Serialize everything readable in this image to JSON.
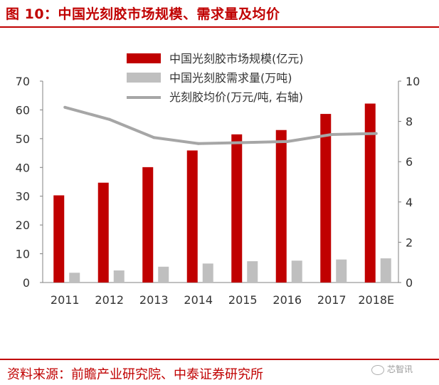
{
  "figure": {
    "title": "图 10：中国光刻胶市场规模、需求量及均价",
    "source": "资料来源：前瞻产业研究院、中泰证券研究所",
    "watermark": "芯智讯"
  },
  "chart_data": {
    "type": "bar",
    "categories": [
      "2011",
      "2012",
      "2013",
      "2014",
      "2015",
      "2016",
      "2017",
      "2018E"
    ],
    "series": [
      {
        "name": "中国光刻胶市场规模(亿元)",
        "type": "bar",
        "axis": "left",
        "color": "#c00000",
        "values": [
          30.3,
          34.7,
          40.1,
          45.9,
          51.5,
          53.0,
          58.6,
          62.2
        ]
      },
      {
        "name": "中国光刻胶需求量(万吨)",
        "type": "bar",
        "axis": "left",
        "color": "#bfbfbf",
        "values": [
          3.4,
          4.2,
          5.5,
          6.6,
          7.4,
          7.6,
          8.0,
          8.4
        ]
      },
      {
        "name": "光刻胶均价(万元/吨, 右轴)",
        "type": "line",
        "axis": "right",
        "color": "#a6a6a6",
        "values": [
          8.7,
          8.1,
          7.2,
          6.9,
          6.95,
          7.0,
          7.35,
          7.4
        ]
      }
    ],
    "y_left": {
      "min": 0,
      "max": 70,
      "ticks": [
        0,
        10,
        20,
        30,
        40,
        50,
        60,
        70
      ]
    },
    "y_right": {
      "min": 0,
      "max": 10,
      "ticks": [
        0,
        2,
        4,
        6,
        8,
        10
      ]
    },
    "legend_position": "top-center",
    "grid": false
  }
}
